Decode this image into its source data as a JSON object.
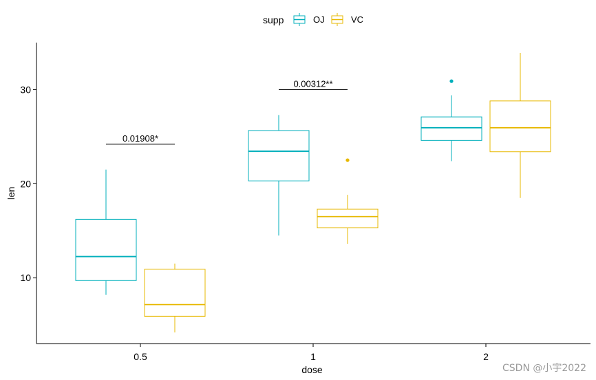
{
  "chart_data": {
    "type": "boxplot",
    "title": "",
    "xlabel": "dose",
    "ylabel": "len",
    "categories": [
      "0.5",
      "1",
      "2"
    ],
    "ylim": [
      3,
      35
    ],
    "yticks": [
      10,
      20,
      30
    ],
    "grid": false,
    "legend": {
      "title": "supp",
      "position": "top",
      "entries": [
        "OJ",
        "VC"
      ]
    },
    "series": [
      {
        "name": "OJ",
        "color": "#00AFBB",
        "boxes": [
          {
            "category": "0.5",
            "whisker_low": 8.2,
            "q1": 9.7,
            "median": 12.25,
            "q3": 16.2,
            "whisker_high": 21.5,
            "outliers": []
          },
          {
            "category": "1",
            "whisker_low": 14.5,
            "q1": 20.3,
            "median": 23.45,
            "q3": 25.65,
            "whisker_high": 27.3,
            "outliers": []
          },
          {
            "category": "2",
            "whisker_low": 22.4,
            "q1": 24.6,
            "median": 25.95,
            "q3": 27.1,
            "whisker_high": 29.4,
            "outliers": [
              30.9
            ]
          }
        ]
      },
      {
        "name": "VC",
        "color": "#E7B800",
        "boxes": [
          {
            "category": "0.5",
            "whisker_low": 4.2,
            "q1": 5.9,
            "median": 7.15,
            "q3": 10.9,
            "whisker_high": 11.5,
            "outliers": []
          },
          {
            "category": "1",
            "whisker_low": 13.6,
            "q1": 15.3,
            "median": 16.5,
            "q3": 17.3,
            "whisker_high": 18.8,
            "outliers": [
              22.5
            ]
          },
          {
            "category": "2",
            "whisker_low": 18.5,
            "q1": 23.4,
            "median": 25.95,
            "q3": 28.8,
            "whisker_high": 33.9,
            "outliers": []
          }
        ]
      }
    ],
    "annotations": [
      {
        "category": "0.5",
        "label": "0.01908*",
        "y": 24.2
      },
      {
        "category": "1",
        "label": "0.00312**",
        "y": 30.0
      }
    ]
  },
  "watermark": "CSDN @小宇2022"
}
